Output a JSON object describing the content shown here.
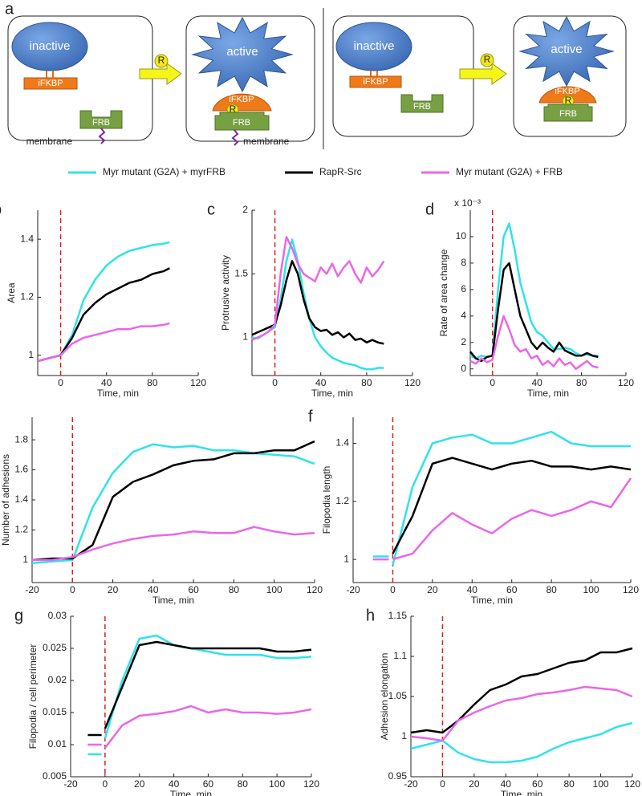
{
  "diagram": {
    "panel_label": "a",
    "boxes": [
      {
        "enzyme": "inactive",
        "binder": "iFKBP",
        "anchor": "FRB",
        "membrane": "membrane"
      },
      {
        "enzyme": "active",
        "binder": "iFKBP",
        "drug": "R",
        "anchor": "FRB",
        "membrane": "membrane"
      },
      {
        "enzyme": "inactive",
        "binder": "iFKBP",
        "anchor": "FRB"
      },
      {
        "enzyme": "active",
        "binder": "iFKBP",
        "drug": "R",
        "anchor": "FRB"
      }
    ],
    "arrows": [
      {
        "drug": "R"
      },
      {
        "drug": "R"
      }
    ]
  },
  "legend": [
    {
      "name": "Myr mutant (G2A) + myrFRB",
      "color": "#2fe3ea"
    },
    {
      "name": "RapR-Src",
      "color": "#000000"
    },
    {
      "name": "Myr mutant (G2A) + FRB",
      "color": "#ea66ea"
    }
  ],
  "chart_data": [
    {
      "type": "line",
      "panel_label": "b",
      "ylabel": "Area",
      "xlabel": "Time, min",
      "vline": 0,
      "xlim": [
        -20,
        120
      ],
      "xticks": [
        0,
        40,
        80,
        120
      ],
      "ylim": [
        0.93,
        1.5
      ],
      "yticks": [
        1,
        1.2,
        1.4
      ],
      "x": [
        -20,
        -10,
        0,
        10,
        20,
        30,
        40,
        50,
        60,
        70,
        80,
        90,
        95
      ],
      "series": [
        {
          "values": [
            0.98,
            0.99,
            1.0,
            1.07,
            1.19,
            1.26,
            1.31,
            1.34,
            1.36,
            1.37,
            1.38,
            1.385,
            1.39
          ]
        },
        {
          "values": [
            0.98,
            0.99,
            1.0,
            1.06,
            1.14,
            1.18,
            1.21,
            1.23,
            1.25,
            1.26,
            1.28,
            1.29,
            1.3
          ]
        },
        {
          "values": [
            0.98,
            0.99,
            1.0,
            1.04,
            1.06,
            1.07,
            1.08,
            1.09,
            1.09,
            1.1,
            1.1,
            1.105,
            1.11
          ]
        }
      ]
    },
    {
      "type": "line",
      "panel_label": "c",
      "ylabel": "Protrusive activity",
      "xlabel": "Time, min",
      "vline": 0,
      "xlim": [
        -20,
        120
      ],
      "xticks": [
        0,
        40,
        80,
        120
      ],
      "ylim": [
        0.7,
        2
      ],
      "yticks": [
        1,
        1.5,
        2
      ],
      "x": [
        -20,
        -15,
        -10,
        -5,
        0,
        5,
        10,
        15,
        20,
        25,
        30,
        35,
        40,
        45,
        50,
        55,
        60,
        65,
        70,
        75,
        80,
        85,
        90,
        95
      ],
      "series": [
        {
          "values": [
            1.0,
            0.99,
            1.02,
            1.05,
            1.08,
            1.3,
            1.6,
            1.77,
            1.6,
            1.35,
            1.15,
            1.0,
            0.93,
            0.88,
            0.84,
            0.82,
            0.8,
            0.79,
            0.78,
            0.76,
            0.75,
            0.75,
            0.76,
            0.76
          ]
        },
        {
          "values": [
            1.02,
            1.04,
            1.06,
            1.08,
            1.1,
            1.25,
            1.45,
            1.6,
            1.5,
            1.3,
            1.15,
            1.08,
            1.05,
            1.06,
            1.02,
            1.04,
            1.0,
            1.03,
            0.98,
            0.99,
            0.96,
            0.98,
            0.96,
            0.95
          ]
        },
        {
          "values": [
            0.98,
            1.0,
            1.02,
            1.05,
            1.1,
            1.5,
            1.79,
            1.7,
            1.58,
            1.5,
            1.47,
            1.44,
            1.55,
            1.5,
            1.58,
            1.48,
            1.55,
            1.6,
            1.5,
            1.43,
            1.55,
            1.48,
            1.53,
            1.6
          ]
        }
      ]
    },
    {
      "type": "line",
      "panel_label": "d",
      "ylabel": "Rate of area change",
      "xlabel": "Time, min",
      "exponent": "x 10⁻³",
      "vline": 0,
      "xlim": [
        -20,
        120
      ],
      "xticks": [
        0,
        40,
        80,
        120
      ],
      "ylim": [
        -0.5,
        12
      ],
      "yticks": [
        0,
        2,
        4,
        6,
        8,
        10
      ],
      "x": [
        -20,
        -15,
        -10,
        -5,
        0,
        5,
        10,
        15,
        20,
        25,
        30,
        35,
        40,
        45,
        50,
        55,
        60,
        65,
        70,
        75,
        80,
        85,
        90,
        95
      ],
      "series": [
        {
          "values": [
            1,
            0.8,
            1,
            0.9,
            1,
            6,
            10,
            11,
            9,
            6.5,
            5,
            3.5,
            2.8,
            2.5,
            2,
            1.5,
            1.5,
            1.6,
            1.5,
            1.2,
            1,
            1.1,
            1,
            1
          ]
        },
        {
          "values": [
            1.3,
            0.8,
            0.6,
            0.9,
            1,
            4.5,
            7.5,
            8,
            6,
            4,
            3,
            2,
            1.5,
            2,
            1.6,
            1.3,
            2,
            1.4,
            1.2,
            1,
            1,
            1.2,
            1,
            0.9
          ]
        },
        {
          "values": [
            0.6,
            0.4,
            0.8,
            0.5,
            0.7,
            2.5,
            4,
            3,
            1.8,
            1.3,
            1.5,
            0.8,
            1,
            0.3,
            0.6,
            0.2,
            0.8,
            0.3,
            0.5,
            0,
            0.3,
            0.6,
            0.2,
            0.1
          ]
        }
      ]
    },
    {
      "type": "line",
      "panel_label": "e",
      "ylabel": "Number of adhesions",
      "xlabel": "Time, min",
      "vline": 0,
      "xlim": [
        -20,
        120
      ],
      "xticks": [
        -20,
        0,
        20,
        40,
        60,
        80,
        100,
        120
      ],
      "ylim": [
        0.85,
        1.95
      ],
      "yticks": [
        1,
        1.2,
        1.4,
        1.6,
        1.8
      ],
      "x": [
        -20,
        -10,
        0,
        10,
        20,
        30,
        40,
        50,
        60,
        70,
        80,
        90,
        100,
        110,
        120
      ],
      "series": [
        {
          "values": [
            0.98,
            0.99,
            1.0,
            1.35,
            1.58,
            1.72,
            1.77,
            1.75,
            1.76,
            1.73,
            1.73,
            1.71,
            1.7,
            1.69,
            1.64
          ]
        },
        {
          "values": [
            1.0,
            1.01,
            1.01,
            1.1,
            1.42,
            1.52,
            1.57,
            1.63,
            1.66,
            1.67,
            1.71,
            1.71,
            1.73,
            1.73,
            1.79
          ]
        },
        {
          "values": [
            1.0,
            1.0,
            1.02,
            1.07,
            1.11,
            1.14,
            1.16,
            1.17,
            1.19,
            1.18,
            1.18,
            1.22,
            1.19,
            1.17,
            1.18
          ]
        }
      ]
    },
    {
      "type": "line",
      "panel_label": "f",
      "ylabel": "Filopodia length",
      "xlabel": "Time, min",
      "vline": 0,
      "xlim": [
        -20,
        120
      ],
      "xticks": [
        -20,
        0,
        20,
        40,
        60,
        80,
        100,
        120
      ],
      "ylim": [
        0.92,
        1.49
      ],
      "yticks": [
        1,
        1.2,
        1.4
      ],
      "x": [
        -10,
        -2,
        -1,
        0,
        10,
        20,
        30,
        40,
        50,
        60,
        70,
        80,
        90,
        100,
        110,
        120
      ],
      "series": [
        {
          "values": [
            1.01,
            1.01,
            null,
            0.98,
            1.25,
            1.4,
            1.42,
            1.43,
            1.4,
            1.4,
            1.42,
            1.44,
            1.4,
            1.39,
            1.39,
            1.39
          ]
        },
        {
          "values": [
            null,
            null,
            null,
            1.02,
            1.15,
            1.33,
            1.35,
            1.33,
            1.31,
            1.33,
            1.34,
            1.32,
            1.32,
            1.31,
            1.32,
            1.31
          ]
        },
        {
          "values": [
            1.0,
            1.0,
            null,
            1.0,
            1.02,
            1.1,
            1.16,
            1.12,
            1.09,
            1.14,
            1.17,
            1.15,
            1.17,
            1.2,
            1.18,
            1.28
          ]
        }
      ]
    },
    {
      "type": "line",
      "panel_label": "g",
      "ylabel": "Filopodia / cell perimeter",
      "xlabel": "Time, min",
      "vline": 0,
      "xlim": [
        -20,
        120
      ],
      "xticks": [
        -20,
        0,
        20,
        40,
        60,
        80,
        100,
        120
      ],
      "ylim": [
        0.005,
        0.03
      ],
      "yticks": [
        0.005,
        0.01,
        0.015,
        0.02,
        0.025,
        0.03
      ],
      "x": [
        -10,
        -2,
        -1,
        0,
        10,
        20,
        30,
        40,
        50,
        60,
        70,
        80,
        90,
        100,
        110,
        120
      ],
      "series": [
        {
          "values": [
            0.0085,
            0.0085,
            null,
            0.011,
            0.02,
            0.0265,
            0.027,
            0.0255,
            0.025,
            0.0245,
            0.024,
            0.024,
            0.024,
            0.0235,
            0.0235,
            0.0237
          ]
        },
        {
          "values": [
            0.0115,
            0.0115,
            null,
            0.0125,
            0.019,
            0.0255,
            0.026,
            0.0255,
            0.025,
            0.025,
            0.025,
            0.025,
            0.025,
            0.0245,
            0.0245,
            0.0248
          ]
        },
        {
          "values": [
            0.01,
            0.01,
            null,
            0.0095,
            0.013,
            0.0145,
            0.0148,
            0.0152,
            0.016,
            0.015,
            0.0155,
            0.015,
            0.015,
            0.0148,
            0.015,
            0.0155
          ]
        }
      ]
    },
    {
      "type": "line",
      "panel_label": "h",
      "ylabel": "Adhesion elongation",
      "xlabel": "Time, min",
      "vline": 0,
      "xlim": [
        -20,
        120
      ],
      "xticks": [
        -20,
        0,
        20,
        40,
        60,
        80,
        100,
        120
      ],
      "ylim": [
        0.95,
        1.15
      ],
      "yticks": [
        0.95,
        1,
        1.05,
        1.1,
        1.15
      ],
      "x": [
        -20,
        -10,
        0,
        10,
        20,
        30,
        40,
        50,
        60,
        70,
        80,
        90,
        100,
        110,
        120
      ],
      "series": [
        {
          "values": [
            0.985,
            0.99,
            0.995,
            0.98,
            0.972,
            0.968,
            0.968,
            0.97,
            0.975,
            0.985,
            0.993,
            0.998,
            1.003,
            1.012,
            1.017
          ]
        },
        {
          "values": [
            1.005,
            1.008,
            1.005,
            1.02,
            1.04,
            1.058,
            1.065,
            1.075,
            1.078,
            1.085,
            1.092,
            1.095,
            1.105,
            1.105,
            1.11
          ]
        },
        {
          "values": [
            1.0,
            0.998,
            0.995,
            1.02,
            1.03,
            1.038,
            1.045,
            1.048,
            1.053,
            1.055,
            1.058,
            1.062,
            1.06,
            1.058,
            1.05
          ]
        }
      ]
    }
  ]
}
